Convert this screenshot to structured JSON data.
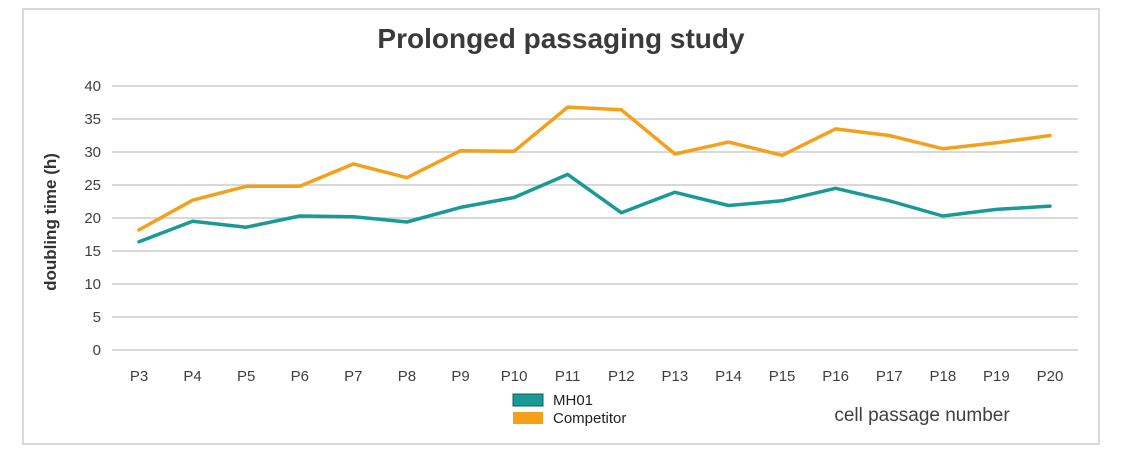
{
  "chart_data": {
    "type": "line",
    "title": "Prolonged passaging study",
    "xlabel": "cell passage number",
    "ylabel": "doubling time  (h)",
    "ylim": [
      0,
      40
    ],
    "yticks": [
      0,
      5,
      10,
      15,
      20,
      25,
      30,
      35,
      40
    ],
    "grid": true,
    "legend_position": "bottom-center",
    "categories": [
      "P3",
      "P4",
      "P5",
      "P6",
      "P7",
      "P8",
      "P9",
      "P10",
      "P11",
      "P12",
      "P13",
      "P14",
      "P15",
      "P16",
      "P17",
      "P18",
      "P19",
      "P20"
    ],
    "series": [
      {
        "name": "MH01",
        "color": "#1a9a96",
        "values": [
          16.4,
          19.5,
          18.6,
          20.3,
          20.2,
          19.4,
          21.6,
          23.1,
          26.6,
          20.8,
          23.9,
          21.9,
          22.6,
          24.5,
          22.6,
          20.3,
          21.3,
          21.8
        ]
      },
      {
        "name": "Competitor",
        "color": "#f5a01a",
        "values": [
          18.2,
          22.7,
          24.8,
          24.8,
          28.2,
          26.1,
          30.2,
          30.1,
          36.8,
          36.4,
          29.7,
          31.5,
          29.5,
          33.5,
          32.5,
          30.5,
          31.4,
          32.5
        ]
      }
    ]
  }
}
